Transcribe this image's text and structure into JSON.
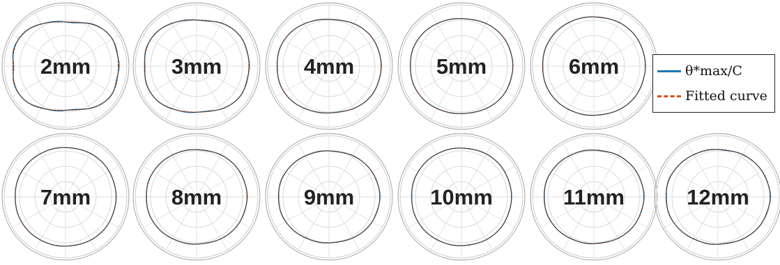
{
  "legend": {
    "entries": [
      {
        "label": "θ*max/C",
        "color": "#1f77b4",
        "style": "solid"
      },
      {
        "label": "Fitted curve",
        "color": "#d95319",
        "style": "dashed"
      }
    ]
  },
  "chart_data": [
    {
      "type": "polar",
      "label": "2mm",
      "shape": {
        "sx": 1.04,
        "sy": 0.9,
        "a2": 0.015,
        "a4": -0.045,
        "p": 0.03
      },
      "series": [
        "θ*max/C",
        "Fitted curve"
      ]
    },
    {
      "type": "polar",
      "label": "3mm",
      "shape": {
        "sx": 1.02,
        "sy": 0.92,
        "a2": 0.01,
        "a4": -0.03,
        "p": 0.02
      },
      "series": [
        "θ*max/C",
        "Fitted curve"
      ]
    },
    {
      "type": "polar",
      "label": "4mm",
      "shape": {
        "sx": 1.0,
        "sy": 0.92,
        "a2": 0.01,
        "a4": -0.015,
        "p": 0.012
      },
      "series": [
        "θ*max/C",
        "Fitted curve"
      ]
    },
    {
      "type": "polar",
      "label": "5mm",
      "shape": {
        "sx": 0.99,
        "sy": 0.92,
        "a2": 0.0,
        "a4": -0.01,
        "p": 0.01
      },
      "series": [
        "θ*max/C",
        "Fitted curve"
      ]
    },
    {
      "type": "polar",
      "label": "6mm",
      "shape": {
        "sx": 0.98,
        "sy": 0.96,
        "a2": 0.01,
        "a4": -0.008,
        "p": 0.01
      },
      "series": [
        "θ*max/C",
        "Fitted curve"
      ]
    },
    {
      "type": "polar",
      "label": "7mm",
      "shape": {
        "sx": 0.97,
        "sy": 0.95,
        "a2": 0.0,
        "a4": -0.005,
        "p": 0.008
      },
      "series": [
        "θ*max/C",
        "Fitted curve"
      ]
    },
    {
      "type": "polar",
      "label": "8mm",
      "shape": {
        "sx": 0.96,
        "sy": 0.92,
        "a2": 0.01,
        "a4": -0.006,
        "p": 0.012
      },
      "series": [
        "θ*max/C",
        "Fitted curve"
      ]
    },
    {
      "type": "polar",
      "label": "9mm",
      "shape": {
        "sx": 0.96,
        "sy": 0.9,
        "a2": 0.015,
        "a4": -0.006,
        "p": 0.014
      },
      "series": [
        "θ*max/C",
        "Fitted curve"
      ]
    },
    {
      "type": "polar",
      "label": "10mm",
      "shape": {
        "sx": 0.96,
        "sy": 0.94,
        "a2": 0.0,
        "a4": -0.005,
        "p": 0.01
      },
      "series": [
        "θ*max/C",
        "Fitted curve"
      ]
    },
    {
      "type": "polar",
      "label": "11mm",
      "shape": {
        "sx": 0.94,
        "sy": 0.92,
        "a2": 0.02,
        "a4": -0.005,
        "p": 0.014
      },
      "series": [
        "θ*max/C",
        "Fitted curve"
      ]
    },
    {
      "type": "polar",
      "label": "12mm",
      "shape": {
        "sx": 0.97,
        "sy": 0.94,
        "a2": 0.03,
        "a4": -0.004,
        "p": 0.018
      },
      "series": [
        "θ*max/C",
        "Fitted curve"
      ]
    }
  ]
}
